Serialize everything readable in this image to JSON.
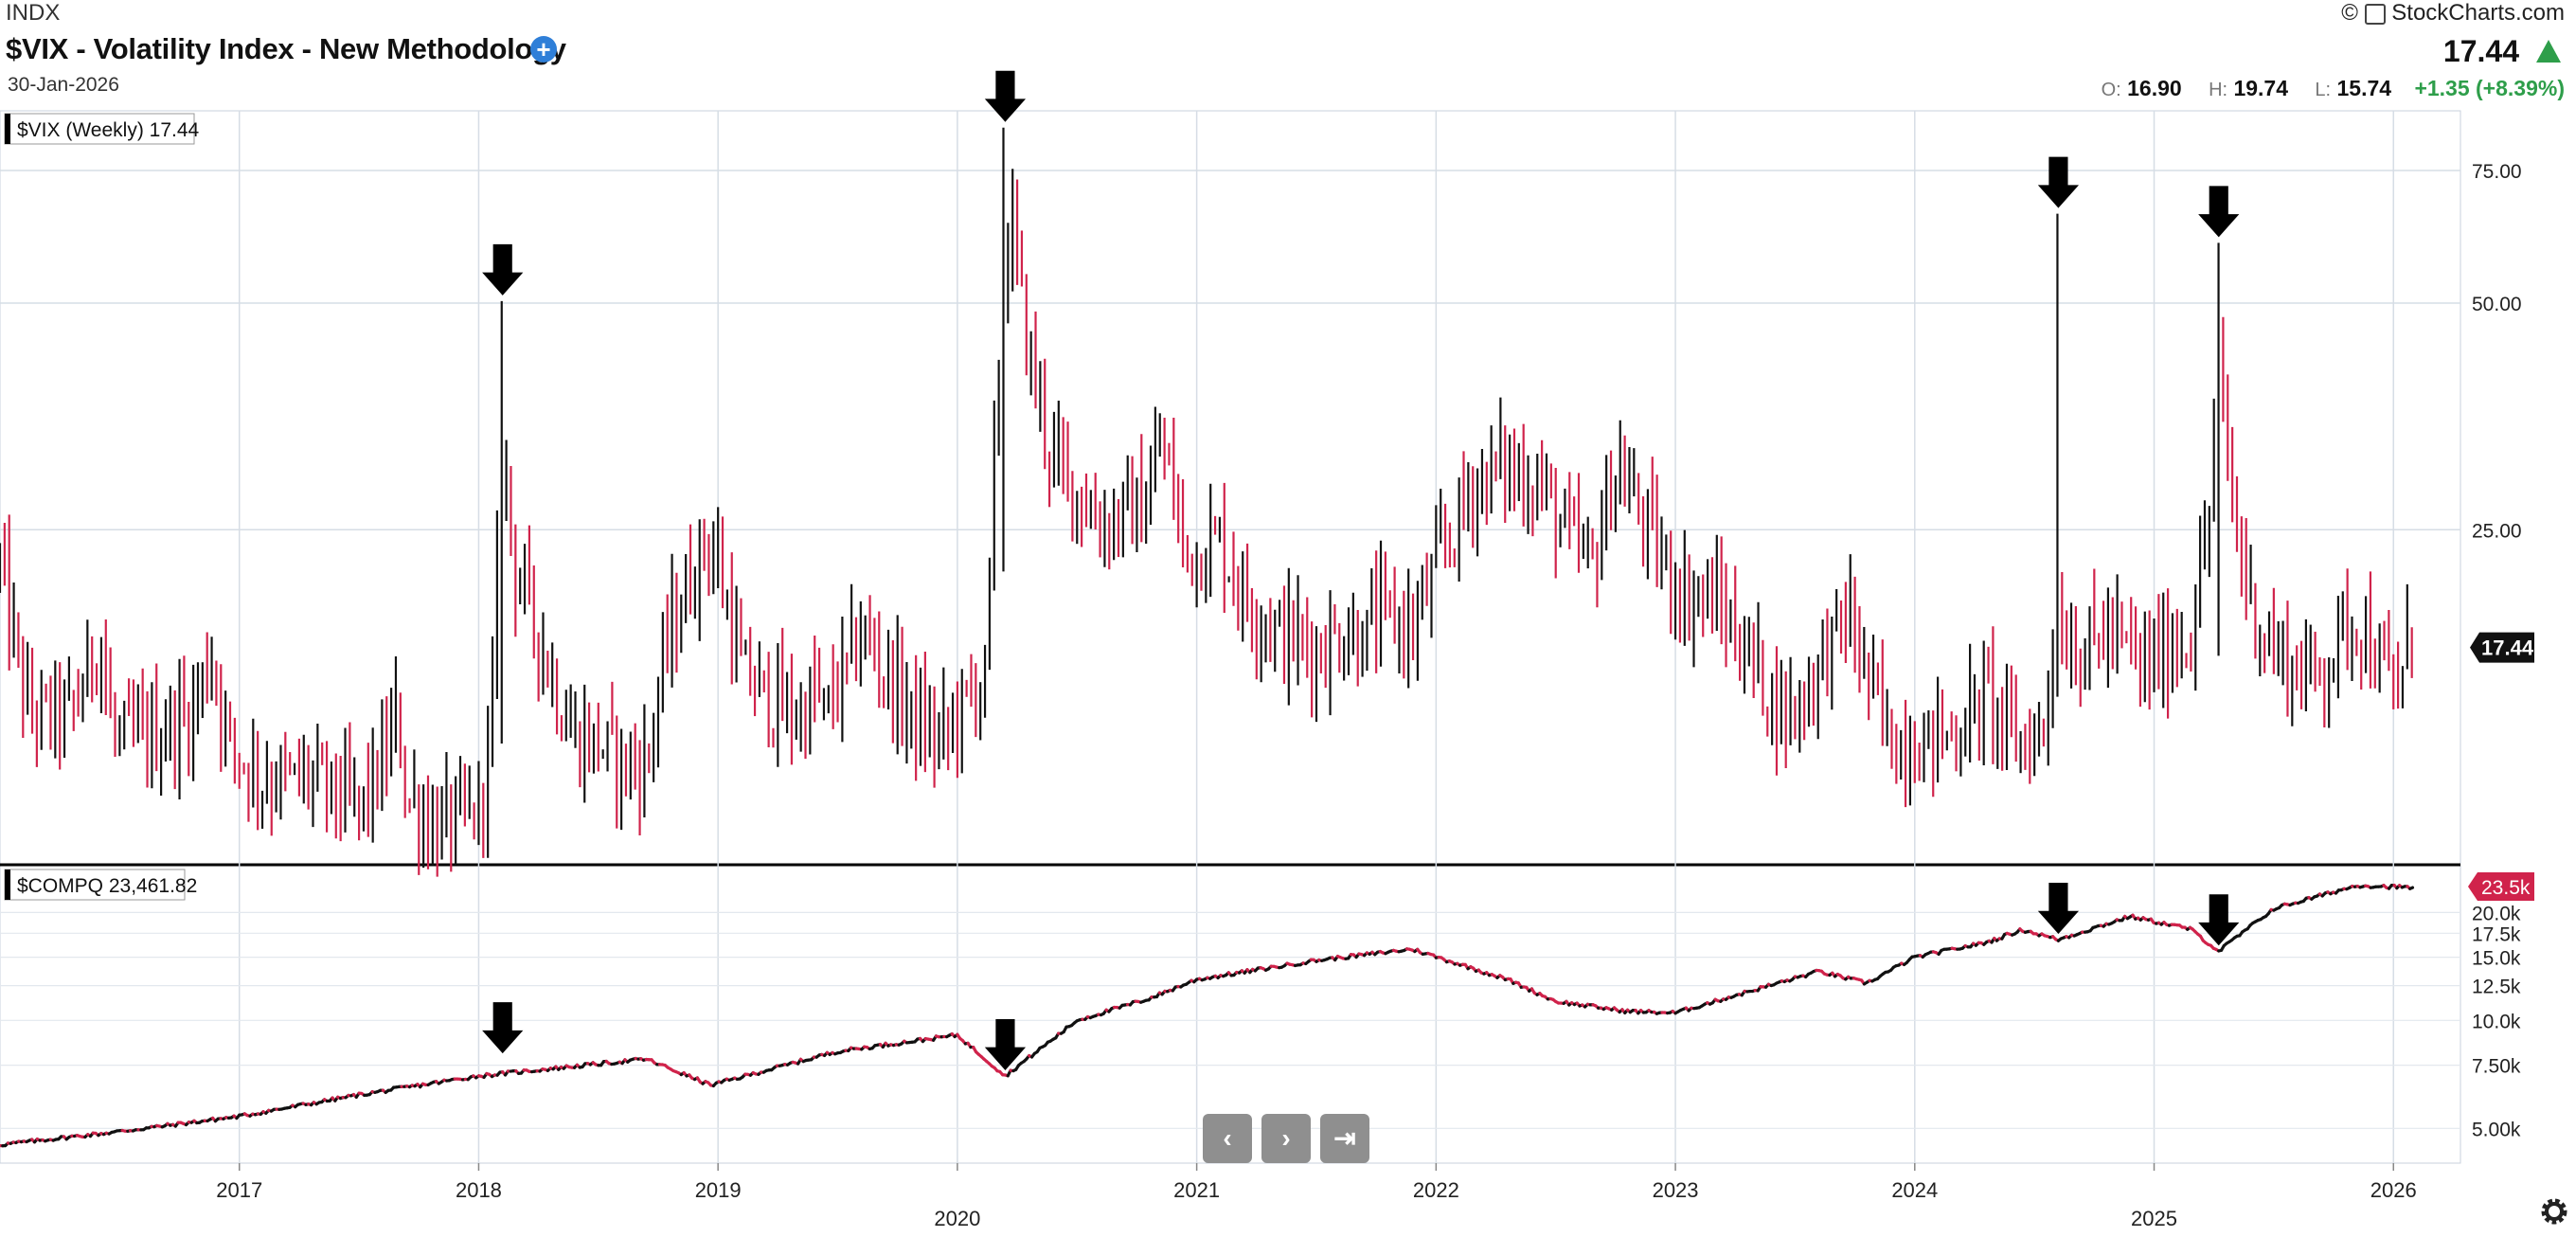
{
  "header": {
    "exchange": "INDX",
    "title": "$VIX - Volatility Index - New Methodology",
    "date": "30-Jan-2026",
    "brand": "StockCharts.com",
    "copyright": "©",
    "last_price": "17.44",
    "ohlc": {
      "o_label": "O:",
      "o_value": "16.90",
      "h_label": "H:",
      "h_value": "19.74",
      "l_label": "L:",
      "l_value": "15.74",
      "change": "+1.35 (+8.39%)"
    },
    "colors": {
      "up": "#2e9e4a",
      "down": "#d0234b",
      "annotation": "#000000"
    }
  },
  "chart_data": [
    {
      "type": "ohlc",
      "symbol": "$VIX (Weekly)",
      "legend": "$VIX (Weekly) 17.44",
      "last_value": "17.44",
      "scale": "log",
      "ylim": [
        9,
        90
      ],
      "ytick_labels": [
        "75.00",
        "50.00",
        "25.00"
      ],
      "ytick_values": [
        75,
        50,
        25
      ],
      "x_start": 2016.0,
      "x_end": 2026.28,
      "xtick_labels": [
        "2017",
        "2018",
        "2019",
        "2020",
        "2021",
        "2022",
        "2023",
        "2024",
        "2025",
        "2026"
      ],
      "anchors": [
        [
          2016.0,
          22
        ],
        [
          2016.05,
          18
        ],
        [
          2016.12,
          14
        ],
        [
          2016.3,
          14
        ],
        [
          2016.42,
          18
        ],
        [
          2016.47,
          13
        ],
        [
          2016.6,
          13
        ],
        [
          2016.8,
          14
        ],
        [
          2016.88,
          17
        ],
        [
          2016.95,
          13
        ],
        [
          2017.1,
          11.5
        ],
        [
          2017.3,
          11.5
        ],
        [
          2017.4,
          11
        ],
        [
          2017.5,
          10.5
        ],
        [
          2017.6,
          12
        ],
        [
          2017.66,
          14
        ],
        [
          2017.7,
          11
        ],
        [
          2017.8,
          10
        ],
        [
          2017.9,
          10
        ],
        [
          2018.0,
          10.5
        ],
        [
          2018.05,
          13
        ],
        [
          2018.1,
          33
        ],
        [
          2018.15,
          22
        ],
        [
          2018.2,
          20
        ],
        [
          2018.3,
          16
        ],
        [
          2018.4,
          13
        ],
        [
          2018.5,
          13
        ],
        [
          2018.6,
          12
        ],
        [
          2018.7,
          12
        ],
        [
          2018.78,
          17
        ],
        [
          2018.85,
          20
        ],
        [
          2018.95,
          24
        ],
        [
          2019.0,
          22
        ],
        [
          2019.1,
          16
        ],
        [
          2019.3,
          14
        ],
        [
          2019.4,
          15
        ],
        [
          2019.35,
          14
        ],
        [
          2019.45,
          14
        ],
        [
          2019.6,
          18
        ],
        [
          2019.7,
          16
        ],
        [
          2019.8,
          14
        ],
        [
          2019.9,
          13
        ],
        [
          2019.95,
          13
        ],
        [
          2020.0,
          14
        ],
        [
          2020.12,
          16
        ],
        [
          2020.17,
          40
        ],
        [
          2020.22,
          65
        ],
        [
          2020.3,
          42
        ],
        [
          2020.4,
          30
        ],
        [
          2020.5,
          28
        ],
        [
          2020.6,
          25
        ],
        [
          2020.7,
          26
        ],
        [
          2020.8,
          27
        ],
        [
          2020.85,
          33
        ],
        [
          2020.95,
          23
        ],
        [
          2021.1,
          24
        ],
        [
          2021.2,
          20
        ],
        [
          2021.35,
          18
        ],
        [
          2021.5,
          17
        ],
        [
          2021.6,
          18
        ],
        [
          2021.7,
          18
        ],
        [
          2021.8,
          19
        ],
        [
          2021.9,
          18
        ],
        [
          2022.0,
          22
        ],
        [
          2022.15,
          28
        ],
        [
          2022.25,
          30
        ],
        [
          2022.35,
          29
        ],
        [
          2022.45,
          28
        ],
        [
          2022.55,
          24
        ],
        [
          2022.65,
          22
        ],
        [
          2022.75,
          30
        ],
        [
          2022.85,
          26
        ],
        [
          2022.95,
          22
        ],
        [
          2023.05,
          20
        ],
        [
          2023.15,
          20
        ],
        [
          2023.25,
          18
        ],
        [
          2023.35,
          16
        ],
        [
          2023.45,
          14
        ],
        [
          2023.55,
          15
        ],
        [
          2023.62,
          17
        ],
        [
          2023.72,
          19
        ],
        [
          2023.82,
          15
        ],
        [
          2023.9,
          13
        ],
        [
          2024.05,
          13
        ],
        [
          2024.2,
          13.5
        ],
        [
          2024.3,
          15
        ],
        [
          2024.4,
          13
        ],
        [
          2024.5,
          13
        ],
        [
          2024.55,
          14
        ],
        [
          2024.58,
          20
        ],
        [
          2024.62,
          18
        ],
        [
          2024.7,
          17
        ],
        [
          2024.8,
          18
        ],
        [
          2024.9,
          17
        ],
        [
          2024.95,
          16
        ],
        [
          2025.05,
          17
        ],
        [
          2025.15,
          18
        ],
        [
          2025.22,
          24
        ],
        [
          2025.27,
          40
        ],
        [
          2025.33,
          26
        ],
        [
          2025.4,
          20
        ],
        [
          2025.5,
          17
        ],
        [
          2025.6,
          16
        ],
        [
          2025.7,
          16
        ],
        [
          2025.78,
          18
        ],
        [
          2025.85,
          19
        ],
        [
          2025.92,
          17
        ],
        [
          2026.0,
          15
        ],
        [
          2026.08,
          17.44
        ]
      ],
      "spikes": [
        {
          "x": 2018.1,
          "high": 50.3,
          "low": 13
        },
        {
          "x": 2020.2,
          "high": 85.5,
          "low": 22
        },
        {
          "x": 2024.6,
          "high": 65.7,
          "low": 15
        },
        {
          "x": 2025.27,
          "high": 60.1,
          "low": 17
        }
      ],
      "annotation_arrows_x": [
        2018.1,
        2020.2,
        2024.6,
        2025.27
      ]
    },
    {
      "type": "line",
      "symbol": "$COMPQ",
      "legend": "$COMPQ 23,461.82",
      "last_value": "23.5k",
      "scale": "log",
      "ylim": [
        4000,
        27000
      ],
      "ytick_labels": [
        "20.0k",
        "17.5k",
        "15.0k",
        "12.5k",
        "10.0k",
        "7.50k",
        "5.00k"
      ],
      "ytick_values": [
        20000,
        17500,
        15000,
        12500,
        10000,
        7500,
        5000
      ],
      "x": [
        2016.0,
        2016.5,
        2017.0,
        2017.5,
        2018.0,
        2018.7,
        2018.97,
        2019.5,
        2020.0,
        2020.2,
        2020.5,
        2020.8,
        2021.0,
        2021.5,
        2021.9,
        2022.3,
        2022.5,
        2022.8,
        2023.0,
        2023.3,
        2023.6,
        2023.8,
        2024.0,
        2024.3,
        2024.45,
        2024.6,
        2024.9,
        2025.15,
        2025.27,
        2025.5,
        2025.85,
        2026.08
      ],
      "y": [
        4500,
        4900,
        5400,
        6200,
        7000,
        7800,
        6600,
        8200,
        9100,
        7000,
        10000,
        11500,
        13000,
        14700,
        15800,
        13000,
        11300,
        10600,
        10500,
        12000,
        13700,
        12700,
        15000,
        16500,
        17900,
        16800,
        19500,
        18000,
        15600,
        20500,
        23800,
        23461.82
      ]
    }
  ],
  "navigation": {
    "prev": "‹",
    "next": "›",
    "last": "⇥"
  }
}
